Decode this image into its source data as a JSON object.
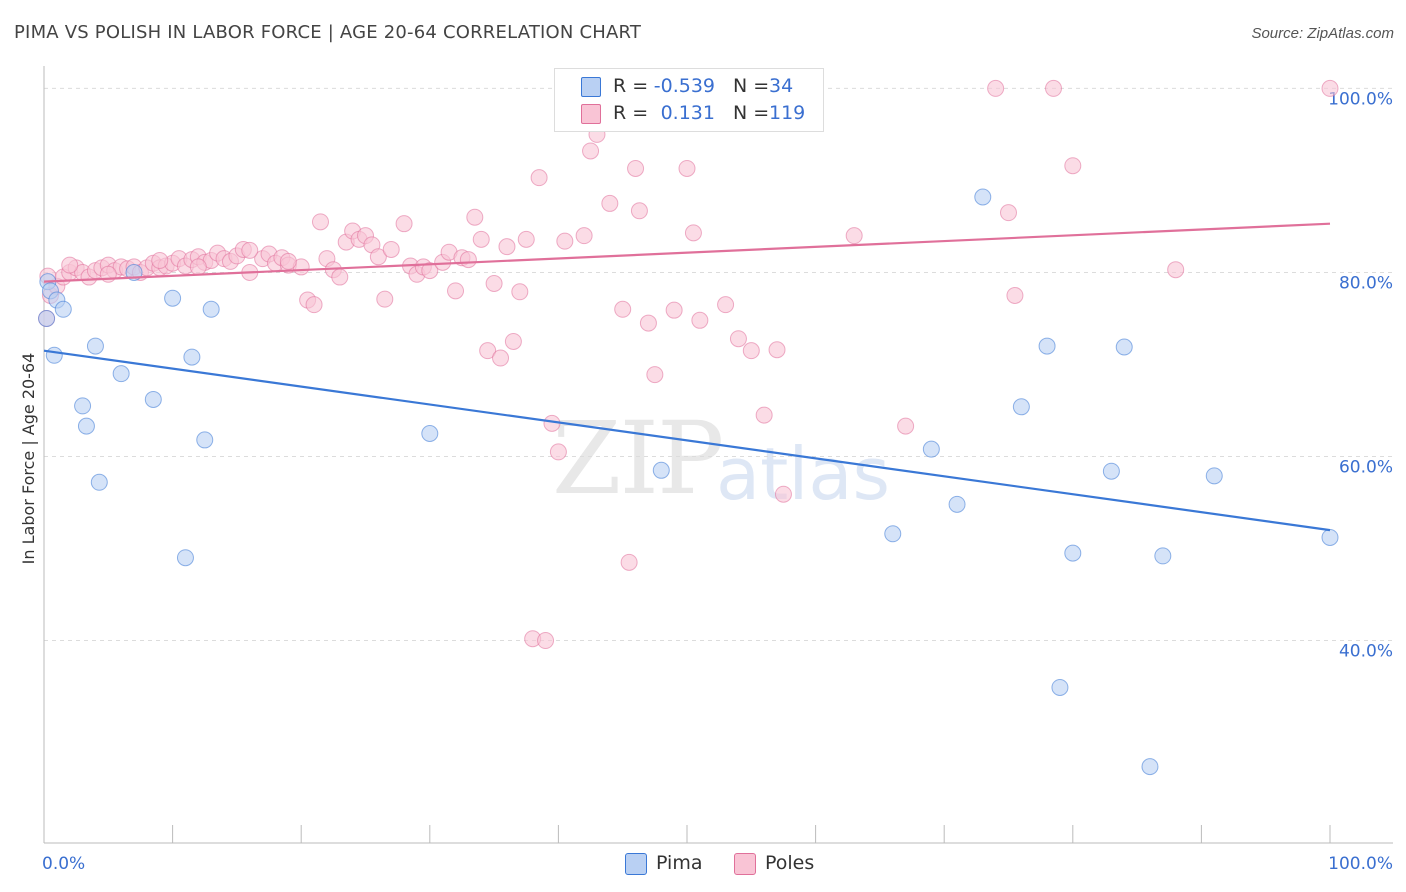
{
  "header": {
    "title": "PIMA VS POLISH IN LABOR FORCE | AGE 20-64 CORRELATION CHART",
    "source": "Source: ZipAtlas.com"
  },
  "watermark": {
    "zip": "ZIP",
    "atlas": "atlas"
  },
  "legend": {
    "rows": [
      {
        "r_label": "R =",
        "r_value": "-0.539",
        "n_label": "N =",
        "n_value": "34",
        "color": "#a9c6f0"
      },
      {
        "r_label": "R =",
        "r_value": "0.131",
        "n_label": "N =",
        "n_value": "119",
        "color": "#f7b3c7"
      }
    ]
  },
  "bottom_legend": {
    "pima": "Pima",
    "poles": "Poles"
  },
  "chart_data": {
    "type": "scatter",
    "title": "PIMA VS POLISH IN LABOR FORCE | AGE 20-64 CORRELATION CHART",
    "ylabel": "In Labor Force | Age 20-64",
    "xlabel": "",
    "xlim": [
      0,
      100
    ],
    "ylim": [
      18,
      102
    ],
    "x_tick_labels": [
      "0.0%",
      "100.0%"
    ],
    "y_ticks": [
      40,
      60,
      80,
      100
    ],
    "y_tick_labels": [
      "40.0%",
      "60.0%",
      "80.0%",
      "100.0%"
    ],
    "grid": "horizontal dashed",
    "legend_placement": "top-center",
    "colors": {
      "pima": "#3a78d6",
      "poles": "#e0709a",
      "pima_fill": "#b9d0f3",
      "poles_fill": "#f9c4d5"
    },
    "series": [
      {
        "name": "Pima",
        "trend": {
          "x": [
            0,
            100
          ],
          "y": [
            71.5,
            52.0
          ]
        },
        "points": [
          [
            0.3,
            79
          ],
          [
            0.5,
            78
          ],
          [
            1,
            77
          ],
          [
            1.5,
            76
          ],
          [
            0.8,
            71
          ],
          [
            4,
            72
          ],
          [
            6,
            69
          ],
          [
            3,
            65.5
          ],
          [
            3.3,
            63.3
          ],
          [
            4.3,
            57.2
          ],
          [
            7,
            80
          ],
          [
            8.5,
            66.2
          ],
          [
            10,
            77.2
          ],
          [
            11,
            49
          ],
          [
            11.5,
            70.8
          ],
          [
            12.5,
            61.8
          ],
          [
            13,
            76
          ],
          [
            30,
            62.5
          ],
          [
            48,
            58.5
          ],
          [
            66,
            51.6
          ],
          [
            69,
            60.8
          ],
          [
            71,
            54.8
          ],
          [
            73,
            88.2
          ],
          [
            76,
            65.4
          ],
          [
            78,
            72
          ],
          [
            79,
            34.9
          ],
          [
            80,
            49.5
          ],
          [
            83,
            58.4
          ],
          [
            84,
            71.9
          ],
          [
            86,
            26.3
          ],
          [
            87,
            49.2
          ],
          [
            91,
            57.9
          ],
          [
            100,
            51.2
          ],
          [
            0.2,
            75
          ]
        ]
      },
      {
        "name": "Poles",
        "trend": {
          "x": [
            0,
            100
          ],
          "y": [
            79.0,
            85.3
          ]
        },
        "points": [
          [
            0.2,
            75
          ],
          [
            0.5,
            77.5
          ],
          [
            1,
            78.5
          ],
          [
            1.5,
            79.5
          ],
          [
            2,
            80
          ],
          [
            2.5,
            80.5
          ],
          [
            3,
            80
          ],
          [
            3.5,
            79.5
          ],
          [
            4,
            80.2
          ],
          [
            4.5,
            80.5
          ],
          [
            5,
            80.8
          ],
          [
            5.5,
            80.2
          ],
          [
            6,
            80.6
          ],
          [
            6.5,
            80.4
          ],
          [
            7,
            80.6
          ],
          [
            7.5,
            80
          ],
          [
            8,
            80.5
          ],
          [
            8.5,
            81
          ],
          [
            9,
            80.5
          ],
          [
            9.5,
            80.7
          ],
          [
            10,
            81
          ],
          [
            10.5,
            81.5
          ],
          [
            11,
            80.7
          ],
          [
            11.5,
            81.4
          ],
          [
            12,
            81.7
          ],
          [
            12.5,
            81.1
          ],
          [
            13,
            81.3
          ],
          [
            13.5,
            82.1
          ],
          [
            14,
            81.5
          ],
          [
            14.5,
            81.2
          ],
          [
            15,
            81.8
          ],
          [
            15.5,
            82.5
          ],
          [
            16,
            80
          ],
          [
            17,
            81.5
          ],
          [
            17.5,
            82
          ],
          [
            18,
            81
          ],
          [
            18.5,
            81.6
          ],
          [
            19,
            80.8
          ],
          [
            20,
            80.6
          ],
          [
            20.5,
            77
          ],
          [
            21,
            76.5
          ],
          [
            21.5,
            85.5
          ],
          [
            22,
            81.5
          ],
          [
            22.5,
            80.3
          ],
          [
            23,
            79.5
          ],
          [
            23.5,
            83.3
          ],
          [
            24,
            84.5
          ],
          [
            24.5,
            83.6
          ],
          [
            25,
            84
          ],
          [
            25.5,
            83
          ],
          [
            26,
            81.7
          ],
          [
            26.5,
            77.1
          ],
          [
            27,
            82.5
          ],
          [
            28,
            85.3
          ],
          [
            28.5,
            80.7
          ],
          [
            29,
            79.8
          ],
          [
            29.5,
            80.6
          ],
          [
            30,
            80.2
          ],
          [
            31,
            81.1
          ],
          [
            31.5,
            82.2
          ],
          [
            32,
            78
          ],
          [
            32.5,
            81.6
          ],
          [
            33,
            81.4
          ],
          [
            33.5,
            86
          ],
          [
            34,
            83.6
          ],
          [
            34.5,
            71.5
          ],
          [
            35,
            78.8
          ],
          [
            35.5,
            70.7
          ],
          [
            36,
            82.8
          ],
          [
            36.5,
            72.5
          ],
          [
            37,
            77.9
          ],
          [
            37.5,
            83.6
          ],
          [
            38,
            40.2
          ],
          [
            38.5,
            90.3
          ],
          [
            39,
            40
          ],
          [
            39.5,
            63.6
          ],
          [
            40,
            60.5
          ],
          [
            40.5,
            83.4
          ],
          [
            41,
            99.5
          ],
          [
            42,
            84
          ],
          [
            42.5,
            93.2
          ],
          [
            43,
            95
          ],
          [
            44,
            87.5
          ],
          [
            44.5,
            100
          ],
          [
            45,
            76
          ],
          [
            45.5,
            48.5
          ],
          [
            46,
            91.3
          ],
          [
            46.3,
            86.7
          ],
          [
            47,
            74.5
          ],
          [
            47.5,
            68.9
          ],
          [
            48,
            99.5
          ],
          [
            48.5,
            100
          ],
          [
            49,
            75.9
          ],
          [
            50,
            91.3
          ],
          [
            50.5,
            84.3
          ],
          [
            51,
            74.8
          ],
          [
            52,
            97.5
          ],
          [
            53,
            76.5
          ],
          [
            54,
            72.8
          ],
          [
            55,
            71.5
          ],
          [
            56,
            64.5
          ],
          [
            57,
            71.6
          ],
          [
            57.5,
            55.9
          ],
          [
            63,
            84
          ],
          [
            67,
            63.3
          ],
          [
            74,
            100
          ],
          [
            75,
            86.5
          ],
          [
            75.5,
            77.5
          ],
          [
            78.5,
            100
          ],
          [
            80,
            91.6
          ],
          [
            88,
            80.3
          ],
          [
            100,
            100
          ],
          [
            0.3,
            79.6
          ],
          [
            2,
            80.8
          ],
          [
            5,
            79.8
          ],
          [
            9,
            81.3
          ],
          [
            12,
            80.6
          ],
          [
            16,
            82.4
          ],
          [
            19,
            81.2
          ]
        ]
      }
    ]
  }
}
